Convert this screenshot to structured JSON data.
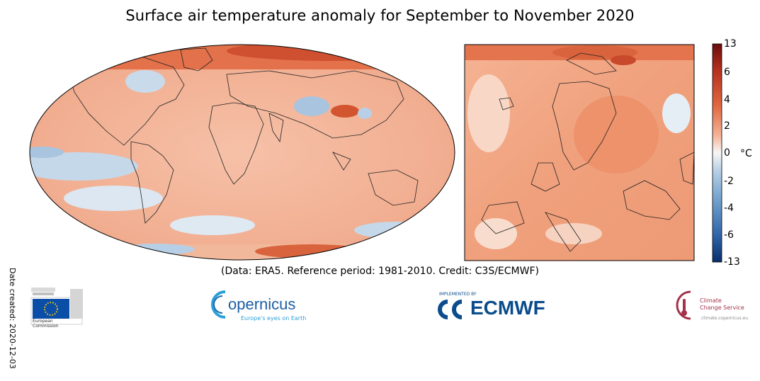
{
  "title": "Surface air temperature anomaly for September to November 2020",
  "date_created": "Date created: 2020-12-03",
  "caption": "(Data: ERA5.  Reference period: 1981-2010.  Credit: C3S/ECMWF)",
  "colorbar": {
    "unit": "°C",
    "ticks": [
      "13",
      "6",
      "4",
      "2",
      "0",
      "-2",
      "-4",
      "-6",
      "-13"
    ],
    "colors": {
      "max": "#6b0d0d",
      "warm": "#e0663e",
      "neutral": "#f7f7f7",
      "cool": "#6f9fcc",
      "min": "#0a2e6b"
    }
  },
  "logos": {
    "ec": {
      "line1": "European",
      "line2": "Commission"
    },
    "copernicus": {
      "name": "opernicus",
      "tagline": "Europe's eyes on Earth"
    },
    "ecmwf": {
      "small": "IMPLEMENTED BY",
      "name": "ECMWF"
    },
    "c3s": {
      "line1": "Climate",
      "line2": "Change Service",
      "url": "climate.copernicus.eu"
    }
  }
}
